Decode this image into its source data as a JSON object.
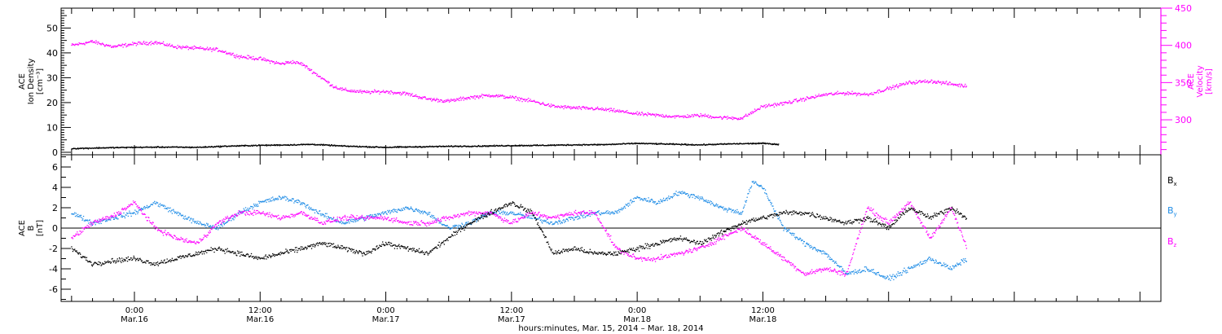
{
  "colors": {
    "black": "#000000",
    "magenta": "#ff00ff",
    "blue": "#1e8ce6"
  },
  "chart_data": [
    {
      "type": "scatter",
      "panel": "top",
      "ylabel_left": [
        "ACE",
        "Ion Density",
        "[cm⁻³]"
      ],
      "ylabel_right": [
        "ACE",
        "Velocity",
        "[km/s]"
      ],
      "y_left_range": [
        -1,
        58
      ],
      "y_left_ticks": [
        0,
        10,
        20,
        30,
        40,
        50
      ],
      "y_right_range": [
        253,
        450
      ],
      "y_right_ticks": [
        300,
        350,
        400,
        450
      ],
      "series": [
        {
          "axis": "left",
          "color": "#000000",
          "points": [
            [
              -6,
              1.5
            ],
            [
              -3,
              1.8
            ],
            [
              0,
              2
            ],
            [
              3,
              2.1
            ],
            [
              6,
              2
            ],
            [
              9,
              2.5
            ],
            [
              12,
              2.8
            ],
            [
              15,
              3
            ],
            [
              17,
              3.2
            ],
            [
              20,
              2.5
            ],
            [
              24,
              2
            ],
            [
              27,
              2.2
            ],
            [
              30,
              2.4
            ],
            [
              33,
              2.5
            ],
            [
              36,
              2.7
            ],
            [
              39,
              2.8
            ],
            [
              42,
              3
            ],
            [
              45,
              3.1
            ],
            [
              48,
              3.6
            ],
            [
              51,
              3.3
            ],
            [
              54,
              3
            ],
            [
              57,
              3.4
            ],
            [
              60,
              3.6
            ],
            [
              61.5,
              3.2
            ]
          ]
        },
        {
          "axis": "right",
          "color": "#ff00ff",
          "points": [
            [
              -6,
              400
            ],
            [
              -4,
              405
            ],
            [
              -2,
              398
            ],
            [
              0,
              402
            ],
            [
              2,
              404
            ],
            [
              4,
              398
            ],
            [
              6,
              396
            ],
            [
              8,
              394
            ],
            [
              10,
              385
            ],
            [
              12,
              382
            ],
            [
              14,
              375
            ],
            [
              15,
              378
            ],
            [
              16,
              375
            ],
            [
              17,
              365
            ],
            [
              18,
              355
            ],
            [
              19,
              345
            ],
            [
              20,
              340
            ],
            [
              22,
              337
            ],
            [
              24,
              338
            ],
            [
              26,
              335
            ],
            [
              28,
              328
            ],
            [
              30,
              325
            ],
            [
              32,
              330
            ],
            [
              34,
              333
            ],
            [
              36,
              330
            ],
            [
              38,
              325
            ],
            [
              40,
              318
            ],
            [
              42,
              316
            ],
            [
              44,
              315
            ],
            [
              46,
              312
            ],
            [
              48,
              308
            ],
            [
              50,
              306
            ],
            [
              52,
              304
            ],
            [
              54,
              306
            ],
            [
              56,
              303
            ],
            [
              58,
              302
            ],
            [
              59,
              310
            ],
            [
              60,
              318
            ],
            [
              62,
              322
            ],
            [
              64,
              328
            ],
            [
              66,
              334
            ],
            [
              68,
              336
            ],
            [
              70,
              334
            ],
            [
              72,
              342
            ],
            [
              74,
              350
            ],
            [
              76,
              352
            ],
            [
              78,
              348
            ],
            [
              79.5,
              345
            ]
          ]
        }
      ]
    },
    {
      "type": "scatter",
      "panel": "bottom",
      "ylabel": [
        "ACE",
        "B",
        "[nT]"
      ],
      "y_range": [
        -7.2,
        7.2
      ],
      "y_ticks": [
        -6,
        -4,
        -2,
        0,
        2,
        4,
        6
      ],
      "zero_line": true,
      "legend": [
        "Bx",
        "By",
        "Bz"
      ],
      "legend_position": "right",
      "series": [
        {
          "name": "Bx",
          "color": "#000000",
          "points": [
            [
              -6,
              -2
            ],
            [
              -4,
              -3.5
            ],
            [
              -2,
              -3.2
            ],
            [
              0,
              -3
            ],
            [
              2,
              -3.5
            ],
            [
              4,
              -3
            ],
            [
              6,
              -2.5
            ],
            [
              8,
              -2
            ],
            [
              10,
              -2.5
            ],
            [
              12,
              -3
            ],
            [
              14,
              -2.5
            ],
            [
              16,
              -2
            ],
            [
              18,
              -1.5
            ],
            [
              20,
              -2
            ],
            [
              22,
              -2.5
            ],
            [
              24,
              -1.5
            ],
            [
              26,
              -2
            ],
            [
              28,
              -2.5
            ],
            [
              30,
              -1
            ],
            [
              32,
              0.5
            ],
            [
              34,
              1.5
            ],
            [
              36,
              2.5
            ],
            [
              38,
              1.5
            ],
            [
              40,
              -2.5
            ],
            [
              42,
              -2
            ],
            [
              44,
              -2.5
            ],
            [
              46,
              -2.5
            ],
            [
              48,
              -2
            ],
            [
              50,
              -1.5
            ],
            [
              52,
              -1
            ],
            [
              54,
              -1.5
            ],
            [
              56,
              -0.5
            ],
            [
              58,
              0.5
            ],
            [
              60,
              1
            ],
            [
              62,
              1.5
            ],
            [
              64,
              1.5
            ],
            [
              66,
              1
            ],
            [
              68,
              0.5
            ],
            [
              70,
              1
            ],
            [
              72,
              0
            ],
            [
              74,
              2
            ],
            [
              76,
              1
            ],
            [
              78,
              2
            ],
            [
              79.5,
              1
            ]
          ]
        },
        {
          "name": "By",
          "color": "#1e8ce6",
          "points": [
            [
              -6,
              1.5
            ],
            [
              -4,
              0.5
            ],
            [
              -2,
              1
            ],
            [
              0,
              1.5
            ],
            [
              2,
              2.5
            ],
            [
              4,
              1.5
            ],
            [
              6,
              0.5
            ],
            [
              8,
              0
            ],
            [
              10,
              1.5
            ],
            [
              12,
              2.5
            ],
            [
              14,
              3
            ],
            [
              16,
              2.5
            ],
            [
              17.5,
              1.5
            ],
            [
              20,
              0.5
            ],
            [
              22,
              1
            ],
            [
              24,
              1.5
            ],
            [
              26,
              2
            ],
            [
              28,
              1.5
            ],
            [
              30,
              0
            ],
            [
              32,
              0.5
            ],
            [
              34,
              1.5
            ],
            [
              36,
              1.5
            ],
            [
              38,
              1
            ],
            [
              40,
              0.5
            ],
            [
              42,
              1
            ],
            [
              44,
              1.5
            ],
            [
              46,
              1.5
            ],
            [
              48,
              3
            ],
            [
              50,
              2.5
            ],
            [
              52,
              3.5
            ],
            [
              54,
              3
            ],
            [
              56,
              2
            ],
            [
              58,
              1.5
            ],
            [
              59,
              4.5
            ],
            [
              60,
              4
            ],
            [
              61,
              2
            ],
            [
              62,
              0
            ],
            [
              64,
              -1.5
            ],
            [
              66,
              -2.5
            ],
            [
              68,
              -4.5
            ],
            [
              70,
              -4
            ],
            [
              72,
              -5
            ],
            [
              74,
              -4
            ],
            [
              76,
              -3
            ],
            [
              78,
              -4
            ],
            [
              79.5,
              -3
            ]
          ]
        },
        {
          "name": "Bz",
          "color": "#ff00ff",
          "points": [
            [
              -6,
              -1
            ],
            [
              -4,
              0.5
            ],
            [
              -2,
              1.2
            ],
            [
              0,
              2.5
            ],
            [
              2,
              0
            ],
            [
              4,
              -1
            ],
            [
              6,
              -1.5
            ],
            [
              8,
              0.5
            ],
            [
              10,
              1.5
            ],
            [
              12,
              1.5
            ],
            [
              14,
              1
            ],
            [
              16,
              1.5
            ],
            [
              18,
              0.5
            ],
            [
              20,
              1
            ],
            [
              22,
              1
            ],
            [
              24,
              1
            ],
            [
              26,
              0.5
            ],
            [
              28,
              0.5
            ],
            [
              30,
              1
            ],
            [
              32,
              1.5
            ],
            [
              34,
              1.5
            ],
            [
              36,
              0.5
            ],
            [
              38,
              1.5
            ],
            [
              40,
              1
            ],
            [
              42,
              1.5
            ],
            [
              44,
              1.5
            ],
            [
              46,
              -2
            ],
            [
              48,
              -3
            ],
            [
              50,
              -3
            ],
            [
              52,
              -2.5
            ],
            [
              54,
              -2
            ],
            [
              56,
              -1
            ],
            [
              58,
              0
            ],
            [
              60,
              -1.5
            ],
            [
              62,
              -3
            ],
            [
              64,
              -4.5
            ],
            [
              66,
              -4
            ],
            [
              68,
              -4.5
            ],
            [
              70,
              2
            ],
            [
              72,
              0.5
            ],
            [
              74,
              2.5
            ],
            [
              76,
              -1
            ],
            [
              78,
              2
            ],
            [
              79.5,
              -2
            ]
          ]
        }
      ]
    }
  ],
  "x_axis": {
    "unit": "hours",
    "range": [
      -7,
      98
    ],
    "ticks": [
      {
        "value": 0,
        "time": "0:00",
        "date": "Mar.16"
      },
      {
        "value": 12,
        "time": "12:00",
        "date": "Mar.16"
      },
      {
        "value": 24,
        "time": "0:00",
        "date": "Mar.17"
      },
      {
        "value": 36,
        "time": "12:00",
        "date": "Mar.17"
      },
      {
        "value": 48,
        "time": "0:00",
        "date": "Mar.18"
      },
      {
        "value": 60,
        "time": "12:00",
        "date": "Mar.18"
      }
    ],
    "label": "hours:minutes, Mar. 15, 2014 – Mar. 18, 2014"
  }
}
